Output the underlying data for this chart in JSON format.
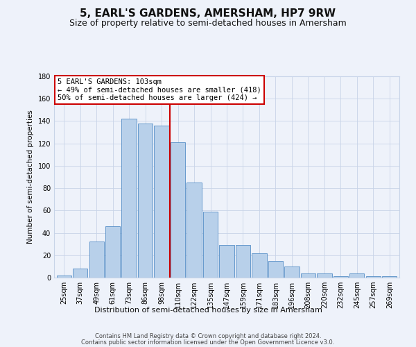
{
  "title": "5, EARL'S GARDENS, AMERSHAM, HP7 9RW",
  "subtitle": "Size of property relative to semi-detached houses in Amersham",
  "xlabel": "Distribution of semi-detached houses by size in Amersham",
  "ylabel": "Number of semi-detached properties",
  "categories": [
    "25sqm",
    "37sqm",
    "49sqm",
    "61sqm",
    "73sqm",
    "86sqm",
    "98sqm",
    "110sqm",
    "122sqm",
    "135sqm",
    "147sqm",
    "159sqm",
    "171sqm",
    "183sqm",
    "196sqm",
    "208sqm",
    "220sqm",
    "232sqm",
    "245sqm",
    "257sqm",
    "269sqm"
  ],
  "values": [
    2,
    8,
    32,
    46,
    142,
    138,
    136,
    121,
    85,
    59,
    29,
    29,
    22,
    15,
    10,
    4,
    4,
    1,
    4,
    1,
    1
  ],
  "bar_color": "#b8d0ea",
  "bar_edge_color": "#6699cc",
  "annotation_text": "5 EARL'S GARDENS: 103sqm\n← 49% of semi-detached houses are smaller (418)\n50% of semi-detached houses are larger (424) →",
  "vline_x": 6.5,
  "vline_color": "#cc0000",
  "annotation_box_color": "#ffffff",
  "annotation_box_edge": "#cc0000",
  "background_color": "#eef2fa",
  "footer_line1": "Contains HM Land Registry data © Crown copyright and database right 2024.",
  "footer_line2": "Contains public sector information licensed under the Open Government Licence v3.0.",
  "ylim": [
    0,
    180
  ],
  "title_fontsize": 11,
  "subtitle_fontsize": 9
}
